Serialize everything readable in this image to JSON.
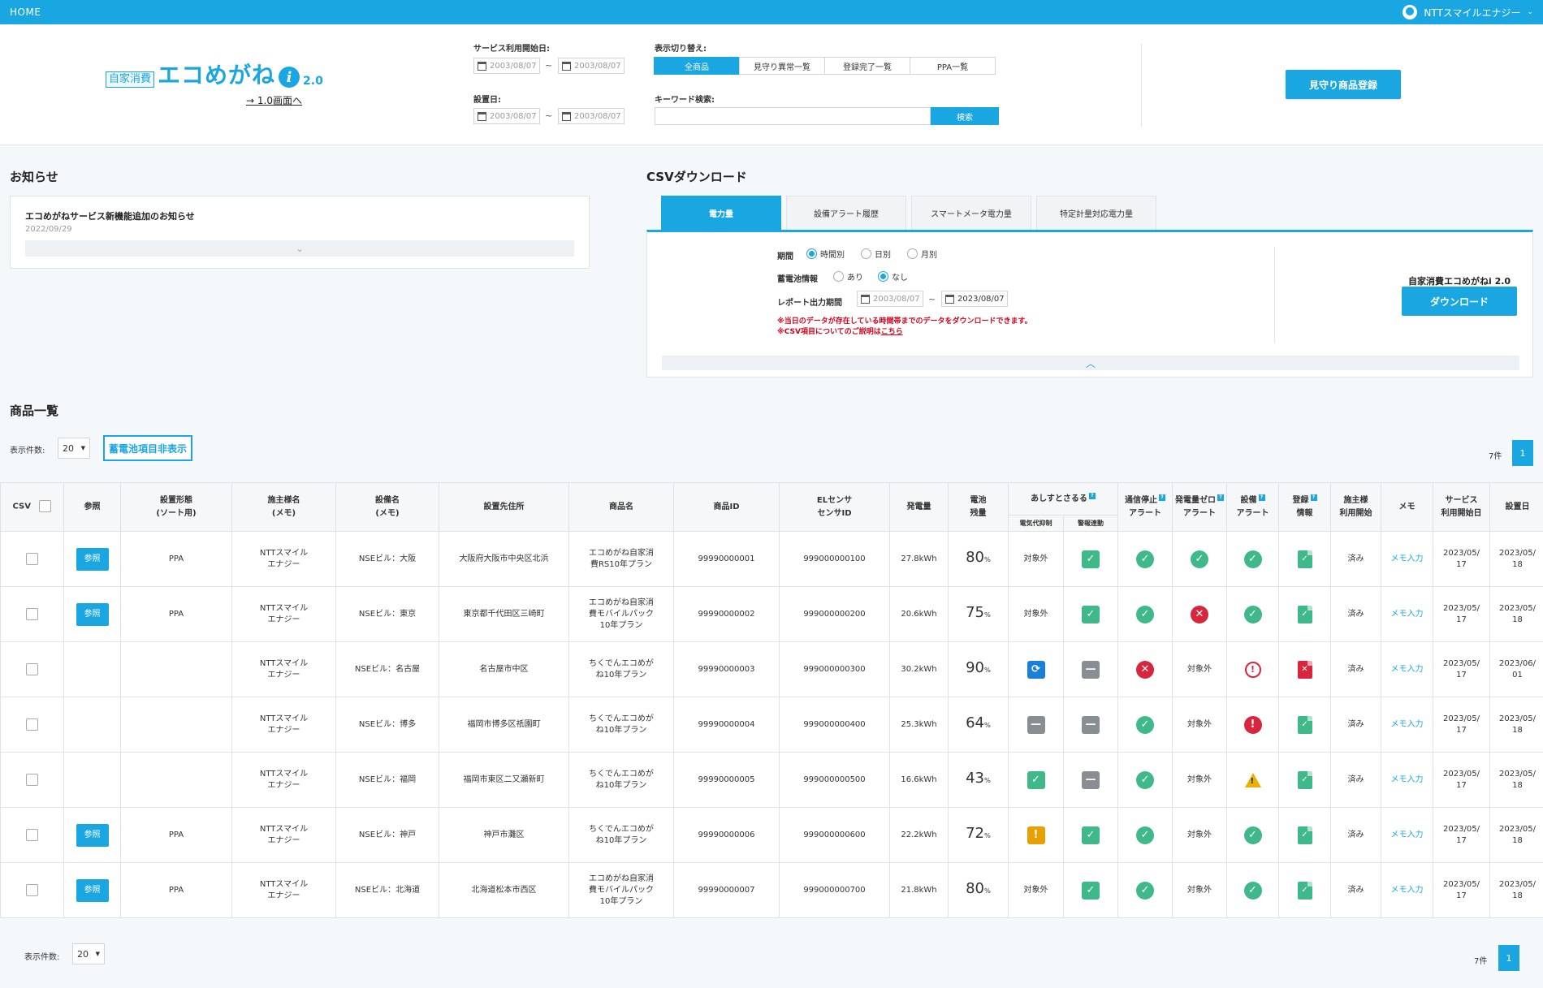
{
  "nav": {
    "home": "HOME",
    "user": "NTTスマイルエナジー",
    "caret": "⌄"
  },
  "logo": {
    "tag": "自家消費",
    "name": "エコめがね",
    "info": "i",
    "version": "2.0",
    "back_link": "→ 1.0画面へ"
  },
  "filters": {
    "service_start_label": "サービス利用開始日:",
    "install_date_label": "設置日:",
    "date_from": "2003/08/07",
    "date_to": "2003/08/07",
    "tilde": "~",
    "view_label": "表示切り替え:",
    "view_tabs": [
      "全商品",
      "見守り異常一覧",
      "登録完了一覧",
      "PPA一覧"
    ],
    "keyword_label": "キーワード検索:",
    "search_button": "検索"
  },
  "register_button": "見守り商品登録",
  "news": {
    "title": "お知らせ",
    "item_title": "エコめがねサービス新機能追加のお知らせ",
    "item_date": "2022/09/29",
    "expand": "⌄"
  },
  "csv": {
    "title": "CSVダウンロード",
    "tabs": [
      "電力量",
      "設備アラート履歴",
      "スマートメータ電力量",
      "特定計量対応電力量"
    ],
    "period_label": "期間",
    "period_options": [
      "時間別",
      "日別",
      "月別"
    ],
    "battery_label": "蓄電池情報",
    "battery_options": [
      "あり",
      "なし"
    ],
    "report_label": "レポート出力期間",
    "report_from": "2003/08/07",
    "report_to": "2023/08/07",
    "note1": "※当日のデータが存在している時間帯までのデータをダウンロードできます。",
    "note2_prefix": "※CSV項目についてのご説明は",
    "note2_link": "こちら",
    "product_name": "自家消費エコめがねi 2.0",
    "download_button": "ダウンロード",
    "collapse": "︿"
  },
  "products": {
    "title": "商品一覧",
    "per_page_label": "表示件数:",
    "per_page": "20",
    "hide_battery_button": "蓄電池項目非表示",
    "count": "7件",
    "page": "1",
    "columns": {
      "csv": "CSV",
      "ref": "参照",
      "type": [
        "設置形態",
        "(ソート用)"
      ],
      "owner": [
        "施主様名",
        "(メモ)"
      ],
      "facility": [
        "設備名",
        "(メモ)"
      ],
      "address": "設置先住所",
      "product": "商品名",
      "product_id": "商品ID",
      "sensor": [
        "ELセンサ",
        "センサID"
      ],
      "generation": "発電量",
      "battery": [
        "電池",
        "残量"
      ],
      "ashisu": "あしすとさるる",
      "ashisu_sub1": "電気代抑制",
      "ashisu_sub2": "警報連動",
      "comm": [
        "通信停止",
        "アラート"
      ],
      "zero": [
        "発電量ゼロ",
        "アラート"
      ],
      "equip": [
        "設備",
        "アラート"
      ],
      "reg": [
        "登録",
        "情報"
      ],
      "owner_start": [
        "施主様",
        "利用開始"
      ],
      "memo": "メモ",
      "service_start": [
        "サービス",
        "利用開始日"
      ],
      "install_date": "設置日",
      "help": "?"
    },
    "ref_label": "参照",
    "memo_label": "メモ入力",
    "na_label": "対象外",
    "done_label": "済み",
    "rows": [
      {
        "type": "PPA",
        "owner": [
          "NTTスマイル",
          "エナジー"
        ],
        "facility": "NSEビル：大阪",
        "address": "大阪府大阪市中央区北浜",
        "product": [
          "エコめがね自家消",
          "費RS10年プラン"
        ],
        "pid": "99990000001",
        "sensor": "999000000100",
        "gen": "27.8kWh",
        "batt": "80",
        "unit": "%",
        "s1": "na",
        "s2": "sq-green",
        "comm": "c-green",
        "zero": "c-green",
        "equip": "c-green",
        "reg": "doc-ok",
        "svc": [
          "2023/05/",
          "17"
        ],
        "inst": [
          "2023/05/",
          "18"
        ],
        "has_ref": true
      },
      {
        "type": "PPA",
        "owner": [
          "NTTスマイル",
          "エナジー"
        ],
        "facility": "NSEビル：東京",
        "address": "東京都千代田区三崎町",
        "product": [
          "エコめがね自家消",
          "費モバイルパック",
          "10年プラン"
        ],
        "pid": "99990000002",
        "sensor": "999000000200",
        "gen": "20.6kWh",
        "batt": "75",
        "unit": "%",
        "s1": "na",
        "s2": "sq-green",
        "comm": "c-green",
        "zero": "c-red",
        "equip": "c-green",
        "reg": "doc-ok",
        "svc": [
          "2023/05/",
          "17"
        ],
        "inst": [
          "2023/05/",
          "18"
        ],
        "has_ref": true
      },
      {
        "type": "",
        "owner": [
          "NTTスマイル",
          "エナジー"
        ],
        "facility": "NSEビル：名古屋",
        "address": "名古屋市中区",
        "product": [
          "ちくでんエコめが",
          "ね10年プラン"
        ],
        "pid": "99990000003",
        "sensor": "999000000300",
        "gen": "30.2kWh",
        "batt": "90",
        "unit": "%",
        "s1": "sq-blue",
        "s2": "sq-gray",
        "comm": "c-red",
        "zero": "na",
        "equip": "clock-red",
        "reg": "doc-ng",
        "svc": [
          "2023/05/",
          "17"
        ],
        "inst": [
          "2023/06/",
          "01"
        ],
        "has_ref": false
      },
      {
        "type": "",
        "owner": [
          "NTTスマイル",
          "エナジー"
        ],
        "facility": "NSEビル：博多",
        "address": "福岡市博多区祇園町",
        "product": [
          "ちくでんエコめが",
          "ね10年プラン"
        ],
        "pid": "99990000004",
        "sensor": "999000000400",
        "gen": "25.3kWh",
        "batt": "64",
        "unit": "%",
        "s1": "sq-gray",
        "s2": "sq-gray",
        "comm": "c-green",
        "zero": "na",
        "equip": "c-red-excl",
        "reg": "doc-ok",
        "svc": [
          "2023/05/",
          "17"
        ],
        "inst": [
          "2023/05/",
          "18"
        ],
        "has_ref": false
      },
      {
        "type": "",
        "owner": [
          "NTTスマイル",
          "エナジー"
        ],
        "facility": "NSEビル：福岡",
        "address": "福岡市東区二又瀬新町",
        "product": [
          "ちくでんエコめが",
          "ね10年プラン"
        ],
        "pid": "99990000005",
        "sensor": "999000000500",
        "gen": "16.6kWh",
        "batt": "43",
        "unit": "%",
        "s1": "sq-green",
        "s2": "sq-gray",
        "comm": "c-green",
        "zero": "na",
        "equip": "tri",
        "reg": "doc-ok",
        "svc": [
          "2023/05/",
          "17"
        ],
        "inst": [
          "2023/05/",
          "18"
        ],
        "has_ref": false
      },
      {
        "type": "PPA",
        "owner": [
          "NTTスマイル",
          "エナジー"
        ],
        "facility": "NSEビル：神戸",
        "address": "神戸市灘区",
        "product": [
          "ちくでんエコめが",
          "ね10年プラン"
        ],
        "pid": "99990000006",
        "sensor": "999000000600",
        "gen": "22.2kWh",
        "batt": "72",
        "unit": "%",
        "s1": "sq-orange",
        "s2": "sq-green",
        "comm": "c-green",
        "zero": "na",
        "equip": "c-green",
        "reg": "doc-ok",
        "svc": [
          "2023/05/",
          "17"
        ],
        "inst": [
          "2023/05/",
          "18"
        ],
        "has_ref": true
      },
      {
        "type": "PPA",
        "owner": [
          "NTTスマイル",
          "エナジー"
        ],
        "facility": "NSEビル：北海道",
        "address": "北海道松本市西区",
        "product": [
          "エコめがね自家消",
          "費モバイルパック",
          "10年プラン"
        ],
        "pid": "99990000007",
        "sensor": "999000000700",
        "gen": "21.8kWh",
        "batt": "80",
        "unit": "%",
        "s1": "na",
        "s2": "sq-green",
        "comm": "c-green",
        "zero": "na",
        "equip": "c-green",
        "reg": "doc-ok",
        "svc": [
          "2023/05/",
          "17"
        ],
        "inst": [
          "2023/05/",
          "18"
        ],
        "has_ref": true
      }
    ]
  },
  "colors": {
    "accent": "#1aa6e1",
    "ok": "#3fb98a",
    "error": "#d7263d",
    "warn": "#e8b100",
    "neutral": "#888e94"
  },
  "icons": {
    "sq-green": {
      "name": "check-square-icon",
      "glyph": "✓"
    },
    "sq-gray": {
      "name": "minus-square-icon",
      "glyph": "—"
    },
    "sq-blue": {
      "name": "refresh-square-icon",
      "glyph": "⟳"
    },
    "sq-orange": {
      "name": "exclamation-square-icon",
      "glyph": "!"
    },
    "c-green": {
      "name": "check-circle-icon",
      "glyph": "✓"
    },
    "c-red": {
      "name": "x-circle-icon",
      "glyph": "✕"
    },
    "c-red-excl": {
      "name": "exclamation-circle-icon",
      "glyph": "!"
    },
    "clock-red": {
      "name": "history-alert-icon",
      "glyph": "!"
    },
    "tri": {
      "name": "warning-triangle-icon",
      "glyph": "!"
    },
    "doc-ok": {
      "name": "document-check-icon",
      "glyph": "✓"
    },
    "doc-ng": {
      "name": "document-x-icon",
      "glyph": "✕"
    }
  }
}
